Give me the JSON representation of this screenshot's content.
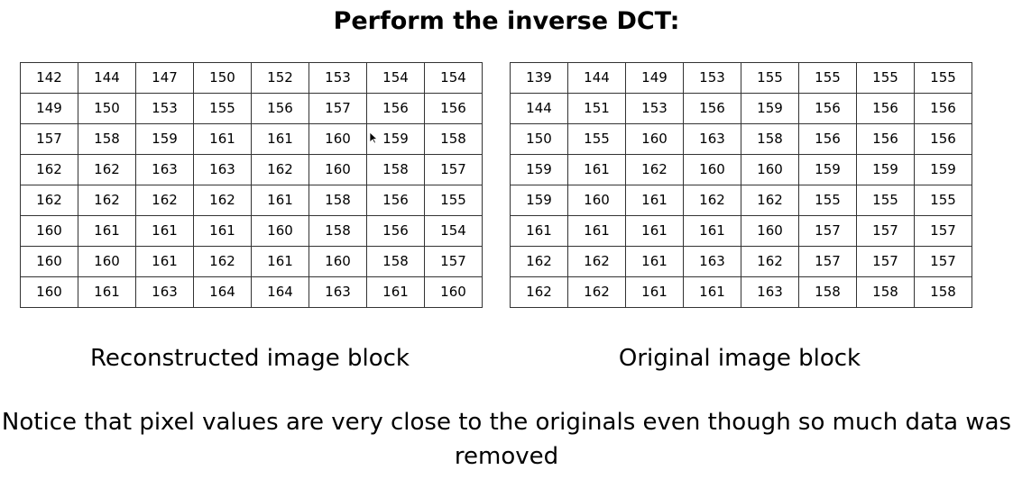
{
  "title": "Perform the inverse DCT:",
  "reconstructed": {
    "caption": "Reconstructed image block",
    "rows": [
      [
        "142",
        "144",
        "147",
        "150",
        "152",
        "153",
        "154",
        "154"
      ],
      [
        "149",
        "150",
        "153",
        "155",
        "156",
        "157",
        "156",
        "156"
      ],
      [
        "157",
        "158",
        "159",
        "161",
        "161",
        "160",
        "159",
        "158"
      ],
      [
        "162",
        "162",
        "163",
        "163",
        "162",
        "160",
        "158",
        "157"
      ],
      [
        "162",
        "162",
        "162",
        "162",
        "161",
        "158",
        "156",
        "155"
      ],
      [
        "160",
        "161",
        "161",
        "161",
        "160",
        "158",
        "156",
        "154"
      ],
      [
        "160",
        "160",
        "161",
        "162",
        "161",
        "160",
        "158",
        "157"
      ],
      [
        "160",
        "161",
        "163",
        "164",
        "164",
        "163",
        "161",
        "160"
      ]
    ]
  },
  "original": {
    "caption": "Original image block",
    "rows": [
      [
        "139",
        "144",
        "149",
        "153",
        "155",
        "155",
        "155",
        "155"
      ],
      [
        "144",
        "151",
        "153",
        "156",
        "159",
        "156",
        "156",
        "156"
      ],
      [
        "150",
        "155",
        "160",
        "163",
        "158",
        "156",
        "156",
        "156"
      ],
      [
        "159",
        "161",
        "162",
        "160",
        "160",
        "159",
        "159",
        "159"
      ],
      [
        "159",
        "160",
        "161",
        "162",
        "162",
        "155",
        "155",
        "155"
      ],
      [
        "161",
        "161",
        "161",
        "161",
        "160",
        "157",
        "157",
        "157"
      ],
      [
        "162",
        "162",
        "161",
        "163",
        "162",
        "157",
        "157",
        "157"
      ],
      [
        "162",
        "162",
        "161",
        "161",
        "163",
        "158",
        "158",
        "158"
      ]
    ]
  },
  "note": "Notice that pixel values are very close to the originals even though so much data was removed",
  "icons": {
    "cursor": "mouse-pointer-icon"
  }
}
